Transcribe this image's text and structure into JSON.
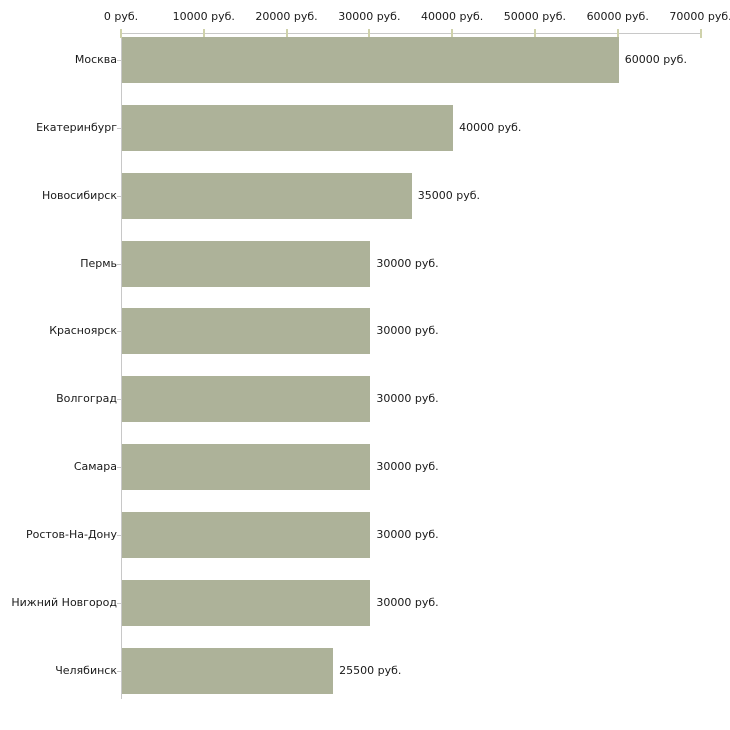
{
  "chart_data": {
    "type": "bar",
    "orientation": "horizontal",
    "title": "",
    "xlabel": "",
    "ylabel": "",
    "xlim": [
      0,
      70000
    ],
    "x_ticks": [
      0,
      10000,
      20000,
      30000,
      40000,
      50000,
      60000,
      70000
    ],
    "x_tick_labels": [
      "0 руб.",
      "10000 руб.",
      "20000 руб.",
      "30000 руб.",
      "40000 руб.",
      "50000 руб.",
      "60000 руб.",
      "70000 руб."
    ],
    "categories": [
      "Москва",
      "Екатеринбург",
      "Новосибирск",
      "Пермь",
      "Красноярск",
      "Волгоград",
      "Самара",
      "Ростов-На-Дону",
      "Нижний Новгород",
      "Челябинск"
    ],
    "values": [
      60000,
      40000,
      35000,
      30000,
      30000,
      30000,
      30000,
      30000,
      30000,
      25500
    ],
    "value_labels": [
      "60000 руб.",
      "40000 руб.",
      "35000 руб.",
      "30000 руб.",
      "30000 руб.",
      "30000 руб.",
      "30000 руб.",
      "30000 руб.",
      "30000 руб.",
      "25500 руб."
    ],
    "grid": false,
    "legend": false,
    "colors": {
      "bar": "#adb299",
      "axis": "#c8c8c8",
      "x_tick": "#cfd2ab",
      "text": "#1a1a1a",
      "background": "#ffffff"
    }
  }
}
